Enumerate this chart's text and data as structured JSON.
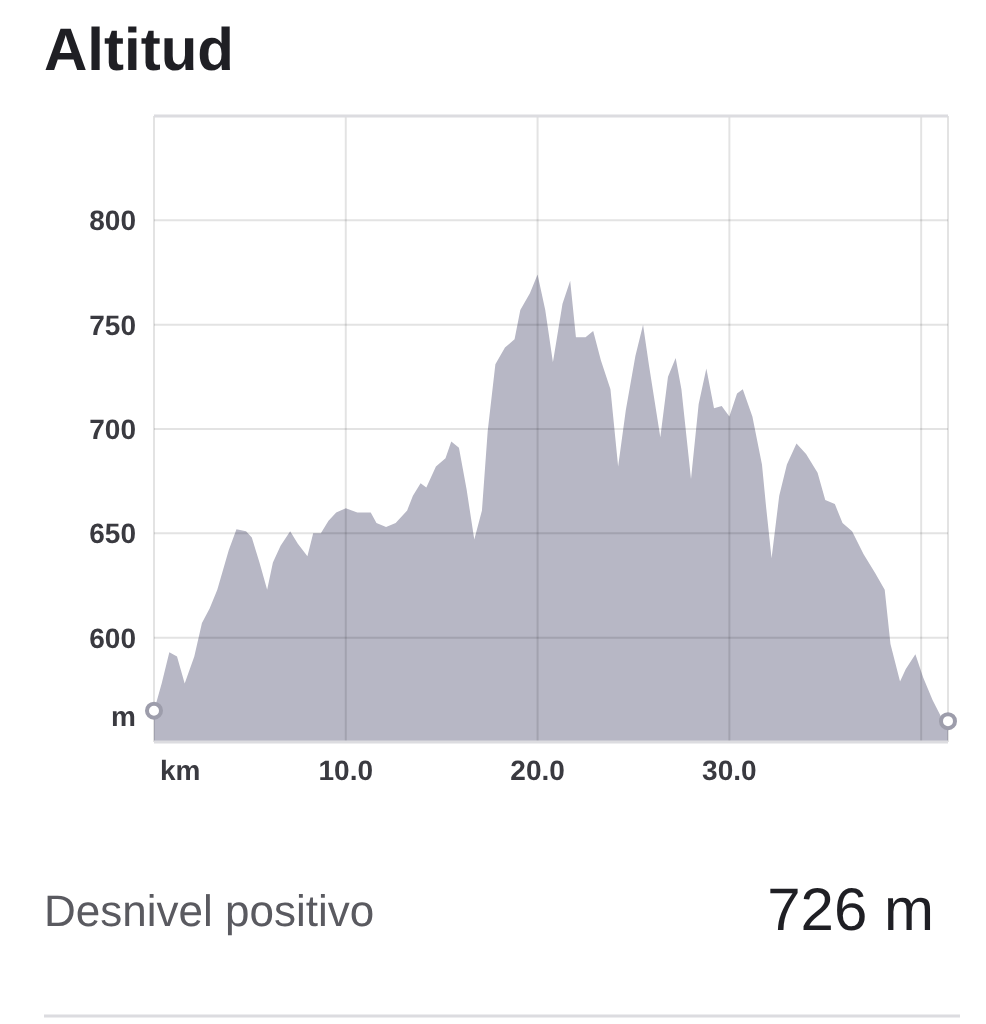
{
  "chart_data": {
    "type": "area",
    "title": "Altitud",
    "xlabel": "km",
    "ylabel": "m",
    "series": [
      {
        "type": "area",
        "color": "#b7b7c5",
        "x": [
          0,
          0.4,
          0.8,
          1.2,
          1.6,
          2.1,
          2.5,
          2.9,
          3.3,
          3.9,
          4.3,
          4.8,
          5.1,
          5.5,
          5.9,
          6.2,
          6.6,
          7.1,
          7.5,
          8.0,
          8.3,
          8.7,
          9.1,
          9.5,
          10.0,
          10.6,
          11.3,
          11.6,
          12.1,
          12.6,
          13.2,
          13.5,
          13.9,
          14.2,
          14.7,
          15.2,
          15.5,
          15.9,
          16.3,
          16.7,
          17.1,
          17.4,
          17.8,
          18.3,
          18.8,
          19.1,
          19.6,
          20.0,
          20.4,
          20.8,
          21.3,
          21.7,
          22.0,
          22.5,
          22.9,
          23.3,
          23.8,
          24.2,
          24.6,
          25.1,
          25.5,
          25.8,
          26.4,
          26.8,
          27.2,
          27.5,
          28.0,
          28.4,
          28.8,
          29.2,
          29.6,
          30.0,
          30.4,
          30.7,
          31.2,
          31.7,
          31.9,
          32.2,
          32.6,
          33.0,
          33.5,
          34.0,
          34.6,
          35.0,
          35.5,
          35.9,
          36.4,
          37.0,
          37.6,
          38.1,
          38.4,
          38.9,
          39.2,
          39.7,
          40.1,
          40.6,
          41.1,
          41.4
        ],
        "values": [
          565,
          578,
          593,
          591,
          578,
          591,
          607,
          614,
          623,
          642,
          652,
          651,
          648,
          636,
          623,
          636,
          644,
          651,
          645,
          639,
          650,
          650,
          656,
          660,
          662,
          660,
          660,
          655,
          653,
          655,
          661,
          668,
          674,
          672,
          682,
          686,
          694,
          691,
          671,
          647,
          661,
          699,
          731,
          739,
          743,
          757,
          765,
          774,
          757,
          732,
          760,
          771,
          744,
          744,
          747,
          733,
          719,
          682,
          709,
          735,
          750,
          731,
          696,
          725,
          734,
          719,
          676,
          712,
          729,
          710,
          711,
          706,
          717,
          719,
          706,
          683,
          664,
          638,
          668,
          683,
          693,
          688,
          679,
          666,
          664,
          655,
          651,
          640,
          631,
          623,
          597,
          579,
          585,
          592,
          581,
          570,
          561,
          560
        ]
      },
      {
        "type": "scatter",
        "color": "#9d9dab",
        "marker": "circle",
        "x": [
          0,
          41.4
        ],
        "values": [
          565,
          560
        ]
      }
    ],
    "xlim": [
      0,
      41.4
    ],
    "ylim": [
      550,
      850
    ],
    "xticks": [
      {
        "value": 10,
        "label": "10.0"
      },
      {
        "value": 20,
        "label": "20.0"
      },
      {
        "value": 30,
        "label": "30.0"
      },
      {
        "value": 40,
        "label": null
      }
    ],
    "yticks": [
      600,
      650,
      700,
      750,
      800
    ],
    "grid": true,
    "annotations": [
      "Desnivel positivo",
      "726 m"
    ]
  }
}
